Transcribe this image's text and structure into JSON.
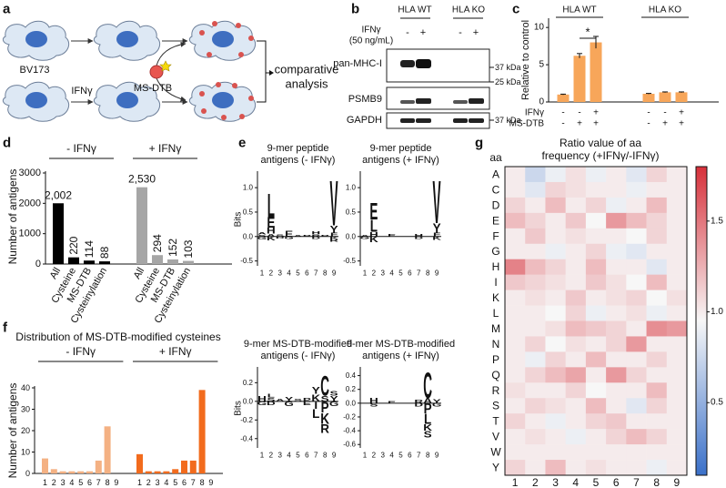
{
  "panel_labels": [
    "a",
    "b",
    "c",
    "d",
    "e",
    "f",
    "g"
  ],
  "schematic": {
    "cell_line": "BV173",
    "treatment": "IFNγ",
    "probe": "MS-DTB",
    "result": [
      "comparative",
      "analysis"
    ]
  },
  "blot": {
    "treatment": "IFNγ",
    "dose": "(50 ng/mL)",
    "groups": [
      "HLA WT",
      "HLA KO"
    ],
    "lanes": [
      "-",
      "+",
      "-",
      "+"
    ],
    "proteins": [
      "pan-MHC-I",
      "PSMB9",
      "GAPDH"
    ],
    "markers": [
      "37 kDa",
      "25 kDa",
      "37 kDa"
    ]
  },
  "logo_colors": {
    "A": "#000000",
    "L": "#000000",
    "V": "#000000",
    "I": "#000000",
    "F": "#000000",
    "M": "#000000",
    "P": "#000000",
    "W": "#000000",
    "C": "#000000",
    "E": "#e8262a",
    "D": "#e8262a",
    "H": "#1f3fbf",
    "K": "#1f3fbf",
    "R": "#1f3fbf",
    "Y": "#2fbf2f",
    "S": "#2fbf2f",
    "G": "#2fbf2f",
    "T": "#2fbf2f",
    "N": "#9b59b6",
    "Q": "#9b59b6"
  },
  "chart_data": [
    {
      "type": "bar",
      "ylabel": "Relative to control",
      "groups": [
        "HLA WT",
        "HLA KO"
      ],
      "values": [
        1.0,
        6.2,
        8.0,
        1.1,
        1.3,
        1.3
      ],
      "errors": [
        0.05,
        0.3,
        0.8,
        0.05,
        0.05,
        0.05
      ],
      "color": "#f7a65a",
      "ylim": [
        0,
        11
      ],
      "yticks": [
        0,
        5,
        10
      ],
      "annotation": "*",
      "conditions": [
        {
          "name": "IFNγ",
          "values": [
            "-",
            "-",
            "+",
            "-",
            "-",
            "+"
          ]
        },
        {
          "name": "MS-DTB",
          "values": [
            "-",
            "+",
            "+",
            "-",
            "+",
            "+"
          ]
        }
      ]
    },
    {
      "type": "bar",
      "ylabel": "Number of antigens",
      "categories": [
        "All",
        "Cysteine",
        "MS-DTB",
        "Cysteinylation"
      ],
      "series": [
        {
          "name": "- IFNγ",
          "color": "#000000",
          "values": [
            2002,
            220,
            114,
            88
          ],
          "value_labels": [
            "2,002",
            "220",
            "114",
            "88"
          ]
        },
        {
          "name": "+ IFNγ",
          "color": "#a6a6a6",
          "values": [
            2530,
            294,
            152,
            103
          ],
          "value_labels": [
            "2,530",
            "294",
            "152",
            "103"
          ]
        }
      ],
      "ylim": [
        0,
        3000
      ],
      "yticks": [
        0,
        1000,
        2000,
        3000
      ]
    },
    {
      "type": "logo",
      "title": [
        "9-mer peptide",
        "antigens (- IFNγ)"
      ],
      "ylabel": "Bits",
      "xlim": [
        0.5,
        9.5
      ],
      "xticks": [
        1,
        2,
        3,
        4,
        5,
        6,
        7,
        8,
        9
      ],
      "ylim": [
        -0.6,
        1.3
      ],
      "yticks": [
        {
          "value": 1,
          "label": "1.0"
        },
        {
          "value": 0.5,
          "label": "0.5"
        },
        {
          "value": 0,
          "label": "0.0"
        },
        {
          "value": -0.5,
          "label": "-0.5"
        }
      ],
      "stacks": [
        {
          "pos": 1,
          "letters": [
            "G",
            "S",
            "A"
          ],
          "bits": [
            -0.06,
            0.04,
            0.05
          ]
        },
        {
          "pos": 2,
          "letters": [
            "K",
            "A",
            "H",
            "E",
            "L"
          ],
          "bits": [
            -0.08,
            0.06,
            0.12,
            0.22,
            0.5
          ]
        },
        {
          "pos": 3,
          "letters": [
            "D",
            "S"
          ],
          "bits": [
            -0.04,
            0.05
          ]
        },
        {
          "pos": 4,
          "letters": [
            "G",
            "E"
          ],
          "bits": [
            -0.05,
            0.12
          ]
        },
        {
          "pos": 5,
          "letters": [
            "A"
          ],
          "bits": [
            0.03
          ]
        },
        {
          "pos": 6,
          "letters": [
            "P"
          ],
          "bits": [
            0.04
          ]
        },
        {
          "pos": 7,
          "letters": [
            "D",
            "R",
            "H"
          ],
          "bits": [
            -0.05,
            0.05,
            0.06
          ]
        },
        {
          "pos": 8,
          "letters": [
            "P"
          ],
          "bits": [
            0.04
          ]
        },
        {
          "pos": 9,
          "letters": [
            "K",
            "R",
            "F",
            "Y",
            "V"
          ],
          "bits": [
            -0.06,
            -0.05,
            0.08,
            0.15,
            0.95
          ]
        }
      ]
    },
    {
      "type": "logo",
      "title": [
        "9-mer peptide",
        "antigens (+ IFNγ)"
      ],
      "xlim": [
        0.5,
        9.5
      ],
      "xticks": [
        1,
        2,
        3,
        4,
        5,
        6,
        7,
        8,
        9
      ],
      "ylim": [
        -0.6,
        1.3
      ],
      "yticks": [
        {
          "value": 1,
          "label": "1.0"
        },
        {
          "value": 0.5,
          "label": "0.5"
        },
        {
          "value": 0,
          "label": "0.0"
        },
        {
          "value": -0.5,
          "label": "-0.5"
        }
      ],
      "stacks": [
        {
          "pos": 1,
          "letters": [
            "G",
            "A"
          ],
          "bits": [
            -0.05,
            0.04
          ]
        },
        {
          "pos": 2,
          "letters": [
            "K",
            "H",
            "L",
            "E"
          ],
          "bits": [
            -0.12,
            0.1,
            0.25,
            0.35
          ]
        },
        {
          "pos": 4,
          "letters": [
            "E"
          ],
          "bits": [
            0.06
          ]
        },
        {
          "pos": 7,
          "letters": [
            "D",
            "H"
          ],
          "bits": [
            -0.05,
            0.06
          ]
        },
        {
          "pos": 9,
          "letters": [
            "K",
            "F",
            "Y",
            "V"
          ],
          "bits": [
            -0.07,
            0.08,
            0.2,
            0.9
          ]
        }
      ]
    },
    {
      "type": "logo",
      "title": [
        "9-mer MS-DTB-modified",
        "antigens (- IFNγ)"
      ],
      "ylabel": "Bits",
      "xlim": [
        0.5,
        9.5
      ],
      "xticks": [
        1,
        2,
        3,
        4,
        5,
        6,
        7,
        8,
        9
      ],
      "ylim": [
        -0.5,
        0.35
      ],
      "yticks": [
        {
          "value": 0.2,
          "label": "0.2"
        },
        {
          "value": 0,
          "label": "0.0"
        },
        {
          "value": -0.2,
          "label": "-0.2"
        },
        {
          "value": -0.4,
          "label": "-0.4"
        }
      ],
      "stacks": [
        {
          "pos": 1,
          "letters": [
            "G",
            "H"
          ],
          "bits": [
            -0.04,
            0.06
          ]
        },
        {
          "pos": 2,
          "letters": [
            "D",
            "S",
            "L"
          ],
          "bits": [
            -0.04,
            0.04,
            0.04
          ]
        },
        {
          "pos": 3,
          "letters": [
            "A"
          ],
          "bits": [
            0.03
          ]
        },
        {
          "pos": 4,
          "letters": [
            "G",
            "Y"
          ],
          "bits": [
            -0.05,
            0.05
          ]
        },
        {
          "pos": 5,
          "letters": [
            "S"
          ],
          "bits": [
            0.03
          ]
        },
        {
          "pos": 6,
          "letters": [
            "E",
            "P"
          ],
          "bits": [
            -0.04,
            0.04
          ]
        },
        {
          "pos": 7,
          "letters": [
            "I",
            "L",
            "K",
            "Y"
          ],
          "bits": [
            -0.08,
            -0.1,
            0.08,
            0.08
          ]
        },
        {
          "pos": 8,
          "letters": [
            "P",
            "K",
            "R",
            "S",
            "C"
          ],
          "bits": [
            -0.12,
            -0.12,
            -0.1,
            0.06,
            0.22
          ]
        },
        {
          "pos": 9,
          "letters": [
            "G",
            "Y",
            "S"
          ],
          "bits": [
            -0.05,
            0.06,
            0.05
          ]
        }
      ]
    },
    {
      "type": "logo",
      "title": [
        "9-mer MS-DTB-modified",
        "antigens (+ IFNγ)"
      ],
      "xlim": [
        0.5,
        9.5
      ],
      "xticks": [
        1,
        2,
        3,
        4,
        5,
        6,
        7,
        8,
        9
      ],
      "ylim": [
        -0.65,
        0.5
      ],
      "yticks": [
        {
          "value": 0.4,
          "label": "0.4"
        },
        {
          "value": 0.2,
          "label": "0.2"
        },
        {
          "value": 0,
          "label": "0.0"
        },
        {
          "value": -0.2,
          "label": "-0.2"
        },
        {
          "value": -0.4,
          "label": "-0.4"
        },
        {
          "value": -0.6,
          "label": "-0.6"
        }
      ],
      "stacks": [
        {
          "pos": 2,
          "letters": [
            "S",
            "H"
          ],
          "bits": [
            -0.05,
            0.08
          ]
        },
        {
          "pos": 4,
          "letters": [
            "E"
          ],
          "bits": [
            0.03
          ]
        },
        {
          "pos": 7,
          "letters": [
            "D",
            "R"
          ],
          "bits": [
            -0.05,
            0.05
          ]
        },
        {
          "pos": 8,
          "letters": [
            "P",
            "L",
            "K",
            "S",
            "A",
            "C"
          ],
          "bits": [
            -0.15,
            -0.15,
            -0.1,
            -0.1,
            0.08,
            0.38
          ]
        },
        {
          "pos": 9,
          "letters": [
            "G",
            "Y"
          ],
          "bits": [
            -0.05,
            0.06
          ]
        }
      ]
    },
    {
      "type": "bar",
      "title": "Distribution of MS-DTB-modified cysteines",
      "ylabel": "Number of antigens",
      "categories": [
        "1",
        "2",
        "3",
        "4",
        "5",
        "6",
        "7",
        "8",
        "9"
      ],
      "series": [
        {
          "name": "- IFNγ",
          "color": "#f4b183",
          "values": [
            7,
            2,
            1,
            1,
            1,
            1,
            6,
            22,
            0
          ]
        },
        {
          "name": "+ IFNγ",
          "color": "#f26b1d",
          "values": [
            9,
            1,
            1,
            1,
            2,
            6,
            6,
            39,
            0
          ]
        }
      ],
      "ylim": [
        0,
        40
      ],
      "yticks": [
        0,
        10,
        20,
        30,
        40
      ]
    },
    {
      "type": "heatmap",
      "title": [
        "Ratio value of aa",
        "frequency (+IFNγ/-IFNγ)"
      ],
      "row_header": "aa",
      "rows": [
        "A",
        "C",
        "D",
        "E",
        "F",
        "G",
        "H",
        "I",
        "K",
        "L",
        "M",
        "N",
        "P",
        "Q",
        "R",
        "S",
        "T",
        "V",
        "W",
        "Y"
      ],
      "columns": [
        "1",
        "2",
        "3",
        "4",
        "5",
        "6",
        "7",
        "8",
        "9"
      ],
      "values": [
        [
          1.0,
          0.75,
          0.9,
          1.05,
          0.9,
          1.0,
          0.85,
          1.1,
          1.0
        ],
        [
          1.0,
          0.85,
          1.1,
          1.05,
          1.0,
          1.0,
          0.9,
          1.0,
          1.0
        ],
        [
          1.1,
          1.0,
          1.2,
          1.0,
          1.1,
          0.9,
          1.0,
          1.2,
          1.0
        ],
        [
          1.2,
          1.1,
          1.0,
          1.15,
          0.95,
          1.35,
          1.2,
          1.1,
          1.0
        ],
        [
          1.0,
          1.15,
          1.0,
          1.05,
          1.0,
          1.0,
          0.95,
          1.1,
          1.0
        ],
        [
          1.0,
          1.0,
          0.9,
          1.0,
          1.1,
          0.9,
          0.85,
          1.0,
          1.0
        ],
        [
          1.45,
          1.2,
          1.1,
          1.0,
          1.2,
          1.0,
          1.0,
          0.85,
          1.0
        ],
        [
          1.15,
          1.1,
          1.05,
          1.0,
          1.15,
          1.05,
          0.95,
          1.2,
          1.0
        ],
        [
          1.0,
          1.05,
          1.0,
          1.15,
          1.0,
          1.05,
          1.1,
          0.95,
          1.05
        ],
        [
          1.0,
          1.0,
          0.95,
          1.1,
          0.9,
          1.0,
          1.05,
          0.9,
          1.0
        ],
        [
          1.0,
          1.0,
          1.05,
          1.2,
          1.15,
          1.1,
          1.0,
          1.4,
          1.35
        ],
        [
          1.0,
          1.1,
          0.95,
          1.05,
          1.0,
          1.1,
          1.35,
          1.0,
          1.0
        ],
        [
          1.0,
          0.9,
          1.1,
          1.0,
          1.2,
          1.0,
          1.0,
          1.1,
          1.0
        ],
        [
          1.0,
          1.1,
          1.2,
          1.3,
          1.0,
          1.35,
          1.1,
          1.0,
          1.0
        ],
        [
          1.05,
          1.0,
          1.0,
          1.1,
          0.95,
          1.0,
          1.0,
          1.2,
          1.0
        ],
        [
          1.0,
          1.1,
          1.05,
          1.0,
          1.2,
          1.0,
          0.85,
          1.1,
          1.0
        ],
        [
          1.1,
          1.0,
          0.9,
          1.0,
          1.1,
          1.15,
          1.0,
          1.0,
          1.0
        ],
        [
          1.0,
          1.05,
          1.0,
          0.9,
          1.0,
          1.1,
          1.2,
          1.1,
          1.0
        ],
        [
          1.0,
          1.0,
          1.0,
          1.0,
          1.0,
          1.0,
          1.0,
          1.0,
          1.0
        ],
        [
          1.1,
          1.0,
          1.2,
          1.0,
          1.05,
          1.0,
          1.0,
          0.9,
          1.0
        ]
      ],
      "colormap": [
        "#3a70c9",
        "#f7f7f7",
        "#d7303a"
      ],
      "clim": [
        0.1,
        1.8
      ],
      "cticks": [
        {
          "value": 1.5,
          "label": "1.5"
        },
        {
          "value": 1,
          "label": "1.0"
        },
        {
          "value": 0.5,
          "label": "0.5"
        }
      ]
    }
  ]
}
